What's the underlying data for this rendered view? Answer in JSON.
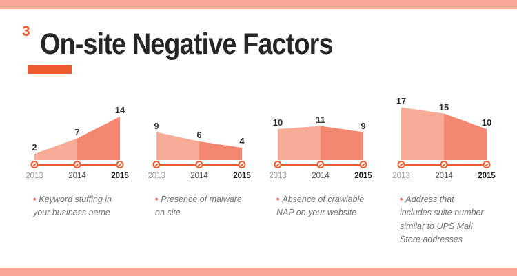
{
  "header": {
    "index": "3",
    "title": "On-site Negative Factors"
  },
  "ui": {
    "bullet": "•"
  },
  "palette": {
    "accent": "#ee5b2f",
    "strip": "#f9a795",
    "area_light": "#f8ab97",
    "area_dark": "#f4876f"
  },
  "chart_data": [
    {
      "type": "area",
      "x": [
        "2013",
        "2014",
        "2015"
      ],
      "values": [
        2,
        7,
        14
      ],
      "ylim": [
        0,
        17
      ],
      "caption": "Keyword stuffing in\nyour business name",
      "highlighted_tick": "2015"
    },
    {
      "type": "area",
      "x": [
        "2013",
        "2014",
        "2015"
      ],
      "values": [
        9,
        6,
        4
      ],
      "ylim": [
        0,
        17
      ],
      "caption": "Presence of malware\non site",
      "highlighted_tick": "2015"
    },
    {
      "type": "area",
      "x": [
        "2013",
        "2014",
        "2015"
      ],
      "values": [
        10,
        11,
        9
      ],
      "ylim": [
        0,
        17
      ],
      "caption": "Absence of crawlable\nNAP on your website",
      "highlighted_tick": "2015"
    },
    {
      "type": "area",
      "x": [
        "2013",
        "2014",
        "2015"
      ],
      "values": [
        17,
        15,
        10
      ],
      "ylim": [
        0,
        17
      ],
      "caption": "Address that\nincludes suite number\nsimilar to UPS Mail\nStore addresses",
      "highlighted_tick": "2015"
    }
  ]
}
